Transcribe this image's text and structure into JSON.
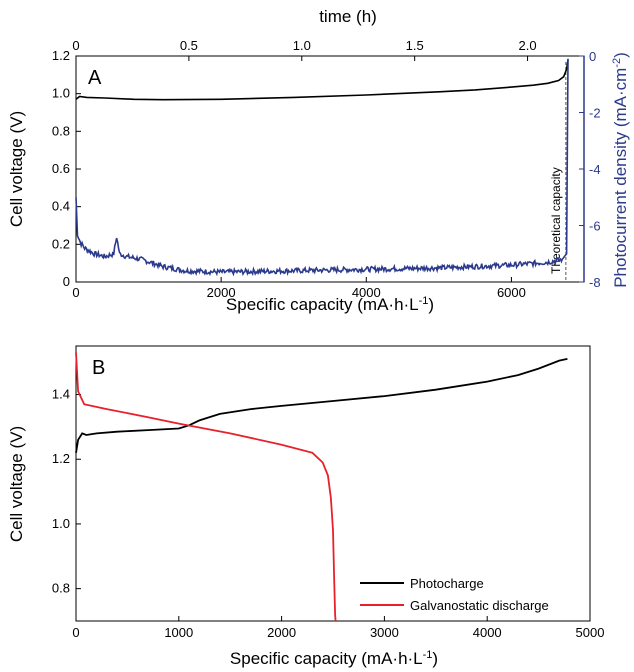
{
  "chart_data": [
    {
      "panel": "A",
      "type": "line",
      "xlabel": "Specific capacity (mA·h·L",
      "xlabel_sup": "-1",
      "xlabel_end": ")",
      "ylabel": "Cell voltage (V)",
      "top_label": "time (h)",
      "right_label": "Photocurrent density (mA·cm",
      "right_label_sup": "-2",
      "right_label_end": ")",
      "xlim": [
        0,
        7000
      ],
      "ylim": [
        0,
        1.2
      ],
      "top_lim": [
        0,
        2.25
      ],
      "right_lim": [
        -8,
        0
      ],
      "x_ticks": [
        0,
        2000,
        4000,
        6000
      ],
      "y_ticks": [
        0,
        0.2,
        0.4,
        0.6,
        0.8,
        1.0,
        1.2
      ],
      "y_tick_labels": [
        "0",
        "0.2",
        "0.4",
        "0.6",
        "0.8",
        "1.0",
        "1.2"
      ],
      "top_ticks": [
        0,
        0.5,
        1.0,
        1.5,
        2.0
      ],
      "top_tick_labels": [
        "0",
        "0.5",
        "1.0",
        "1.5",
        "2.0"
      ],
      "right_ticks": [
        0,
        -2,
        -4,
        -6,
        -8
      ],
      "right_tick_labels": [
        "0",
        "-2",
        "-4",
        "-6",
        "-8"
      ],
      "annotation": "Theoretical capacity",
      "annotation_x": 6750,
      "colors": {
        "voltage": "#000000",
        "current": "#2b3a8c"
      },
      "series": [
        {
          "axis": "left",
          "x": [
            0,
            50,
            150,
            400,
            800,
            1200,
            2000,
            3000,
            4000,
            5000,
            5500,
            6000,
            6300,
            6500,
            6650,
            6720,
            6760,
            6780
          ],
          "values": [
            0.97,
            0.985,
            0.98,
            0.977,
            0.97,
            0.968,
            0.97,
            0.98,
            0.993,
            1.01,
            1.02,
            1.035,
            1.045,
            1.055,
            1.07,
            1.09,
            1.13,
            1.18
          ]
        },
        {
          "axis": "right",
          "x": [
            0,
            20,
            60,
            120,
            250,
            400,
            520,
            560,
            600,
            700,
            900,
            1200,
            1500,
            2000,
            3000,
            4000,
            5000,
            6000,
            6500,
            6700,
            6760,
            6780
          ],
          "values": [
            -5.0,
            -6.3,
            -6.6,
            -6.8,
            -7.0,
            -7.1,
            -7.0,
            -6.4,
            -7.0,
            -7.1,
            -7.2,
            -7.45,
            -7.6,
            -7.65,
            -7.6,
            -7.55,
            -7.5,
            -7.4,
            -7.3,
            -7.2,
            -7.0,
            -0.1
          ]
        }
      ]
    },
    {
      "panel": "B",
      "type": "line",
      "xlabel": "Specific capacity (mA·h·L",
      "xlabel_sup": "-1",
      "xlabel_end": ")",
      "ylabel": "Cell voltage (V)",
      "xlim": [
        0,
        5000
      ],
      "ylim": [
        0.7,
        1.55
      ],
      "x_ticks": [
        0,
        1000,
        2000,
        3000,
        4000,
        5000
      ],
      "y_ticks": [
        0.8,
        1.0,
        1.2,
        1.4
      ],
      "y_tick_labels": [
        "0.8",
        "1.0",
        "1.2",
        "1.4"
      ],
      "legend_position": "bottom-right",
      "series": [
        {
          "name": "Photocharge",
          "color": "#000000",
          "x": [
            0,
            20,
            60,
            100,
            200,
            400,
            700,
            1000,
            1100,
            1200,
            1400,
            1700,
            2000,
            2500,
            3000,
            3500,
            4000,
            4300,
            4500,
            4700,
            4780
          ],
          "values": [
            1.22,
            1.26,
            1.28,
            1.275,
            1.28,
            1.285,
            1.29,
            1.295,
            1.305,
            1.32,
            1.34,
            1.355,
            1.365,
            1.38,
            1.395,
            1.415,
            1.44,
            1.46,
            1.48,
            1.505,
            1.51
          ]
        },
        {
          "name": "Galvanostatic discharge",
          "color": "#e8202a",
          "x": [
            0,
            20,
            80,
            300,
            700,
            1000,
            1500,
            2000,
            2300,
            2400,
            2450,
            2480,
            2500,
            2510,
            2520,
            2525
          ],
          "values": [
            1.53,
            1.41,
            1.37,
            1.355,
            1.33,
            1.31,
            1.28,
            1.245,
            1.22,
            1.19,
            1.15,
            1.08,
            0.98,
            0.85,
            0.72,
            0.7
          ]
        }
      ]
    }
  ]
}
